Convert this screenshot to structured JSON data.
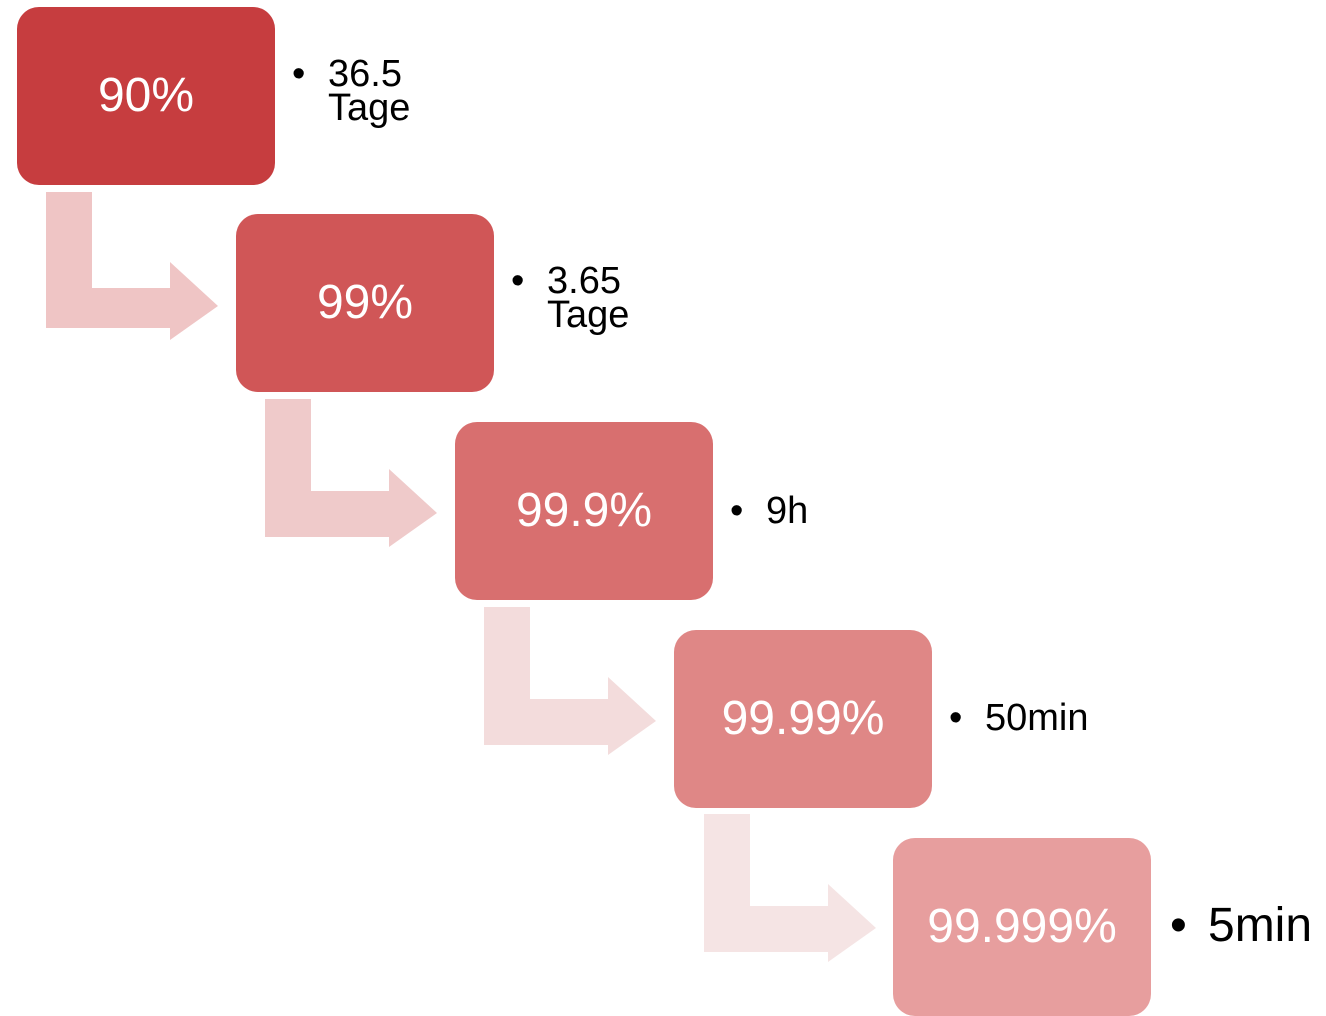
{
  "bullet_glyph": "•",
  "steps": [
    {
      "label": "90%",
      "note": "36.5 Tage",
      "color": "#c63d3f"
    },
    {
      "label": "99%",
      "note": "3.65 Tage",
      "color": "#d05657"
    },
    {
      "label": "99.9%",
      "note": "9h",
      "color": "#d86f6f"
    },
    {
      "label": "99.99%",
      "note": "50min",
      "color": "#df8786"
    },
    {
      "label": "99.999%",
      "note": "5min",
      "color": "#e79e9e"
    }
  ],
  "connector_colors": [
    "#efc5c5",
    "#efcaca",
    "#f3dcdc",
    "#f5e4e4"
  ]
}
